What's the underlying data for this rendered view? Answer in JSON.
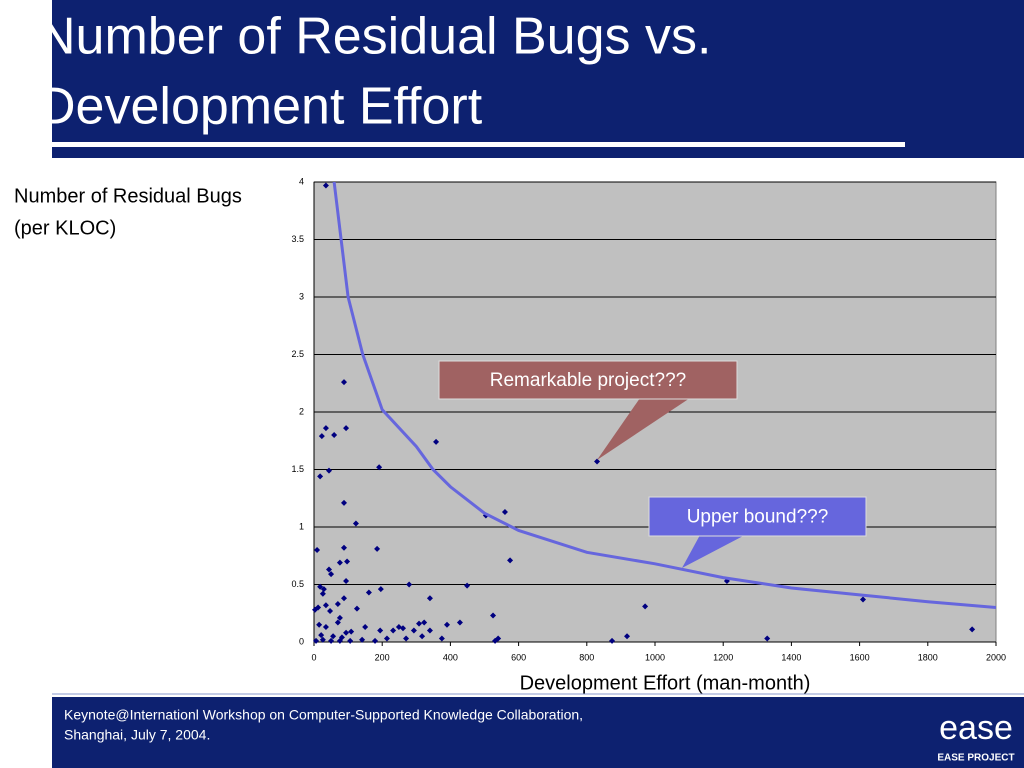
{
  "header": {
    "title": [
      "Number of Residual Bugs vs.",
      "Development Effort"
    ]
  },
  "chart_data": {
    "type": "scatter",
    "ylabel": [
      "Number of Residual Bugs",
      "(per KLOC)"
    ],
    "xlabel": "Development Effort (man-month)",
    "xlim": [
      0,
      2000
    ],
    "xticks": [
      0,
      200,
      400,
      600,
      800,
      1000,
      1200,
      1400,
      1600,
      1800,
      2000
    ],
    "ylim": [
      0,
      4
    ],
    "yticks": [
      0,
      0.5,
      1,
      1.5,
      2,
      2.5,
      3,
      3.5,
      4
    ],
    "grid": true,
    "color": "#000080",
    "x": [
      35,
      88,
      35,
      94,
      23,
      59,
      358,
      44,
      18,
      191,
      830,
      88,
      123,
      504,
      560,
      9,
      88,
      185,
      575,
      44,
      50,
      76,
      97,
      94,
      18,
      29,
      26,
      279,
      449,
      196,
      161,
      340,
      88,
      1211,
      1610,
      971,
      35,
      70,
      12,
      525,
      3,
      47,
      76,
      126,
      308,
      323,
      428,
      390,
      70,
      150,
      194,
      232,
      249,
      261,
      293,
      340,
      15,
      35,
      109,
      21,
      56,
      94,
      26,
      50,
      82,
      141,
      214,
      270,
      317,
      375,
      540,
      531,
      874,
      918,
      1329,
      1930,
      6,
      76,
      179,
      106
    ],
    "y": [
      3.97,
      2.26,
      1.86,
      1.86,
      1.79,
      1.8,
      1.74,
      1.49,
      1.44,
      1.52,
      1.57,
      1.21,
      1.03,
      1.1,
      1.13,
      0.8,
      0.82,
      0.81,
      0.71,
      0.63,
      0.59,
      0.69,
      0.7,
      0.53,
      0.48,
      0.46,
      0.42,
      0.5,
      0.49,
      0.46,
      0.43,
      0.38,
      0.38,
      0.53,
      0.37,
      0.31,
      0.32,
      0.33,
      0.3,
      0.23,
      0.28,
      0.27,
      0.21,
      0.29,
      0.16,
      0.17,
      0.17,
      0.15,
      0.17,
      0.13,
      0.1,
      0.1,
      0.13,
      0.12,
      0.1,
      0.1,
      0.15,
      0.13,
      0.09,
      0.06,
      0.05,
      0.08,
      0.02,
      0.01,
      0.04,
      0.02,
      0.03,
      0.03,
      0.05,
      0.03,
      0.03,
      0.01,
      0.01,
      0.05,
      0.03,
      0.11,
      0.01,
      0.01,
      0.01,
      0.01
    ],
    "curve": {
      "color": "#6666dd",
      "x": [
        59,
        100,
        143,
        200,
        300,
        349,
        400,
        500,
        600,
        800,
        1000,
        1200,
        1400,
        1600,
        1800,
        2000
      ],
      "y": [
        4,
        3.0,
        2.5,
        2.02,
        1.7,
        1.5,
        1.35,
        1.12,
        0.97,
        0.78,
        0.68,
        0.56,
        0.47,
        0.41,
        0.35,
        0.3
      ]
    },
    "annotations": [
      {
        "text": "Remarkable project???",
        "color": "#a06262"
      },
      {
        "text": "Upper bound???",
        "color": "#6666dd"
      }
    ]
  },
  "footer": {
    "lines": [
      "Keynote@Internationl Workshop on Computer-Supported Knowledge Collaboration,",
      "Shanghai, July 7, 2004."
    ],
    "logo": "ease",
    "logo_sub": "EASE PROJECT"
  }
}
